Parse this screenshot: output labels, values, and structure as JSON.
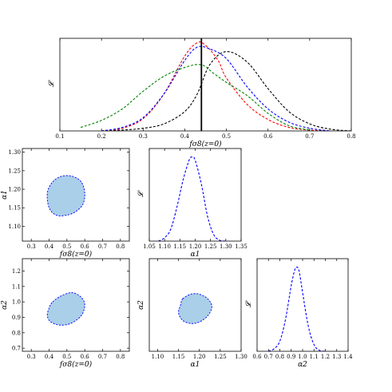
{
  "chart_data": [
    {
      "type": "line",
      "id": "fs8-likelihood",
      "xlabel": "fσ8(z=0)",
      "ylabel": "𝓛",
      "xlim": [
        0.1,
        0.8
      ],
      "ylim": [
        0,
        1.05
      ],
      "x_ticks": [
        "0.1",
        "0.2",
        "0.3",
        "0.4",
        "0.5",
        "0.6",
        "0.7",
        "0.8"
      ],
      "show_y_ticks": false,
      "vline_x": 0.44,
      "series": [
        {
          "color": "#000000",
          "dash": "dashed",
          "x": [
            0.2,
            0.25,
            0.3,
            0.35,
            0.4,
            0.43,
            0.46,
            0.5,
            0.55,
            0.6,
            0.65,
            0.7,
            0.75,
            0.8
          ],
          "y": [
            0.0,
            0.01,
            0.03,
            0.08,
            0.22,
            0.42,
            0.75,
            0.9,
            0.78,
            0.48,
            0.22,
            0.08,
            0.02,
            0.0
          ]
        },
        {
          "color": "#ff0000",
          "dash": "dashed",
          "x": [
            0.2,
            0.25,
            0.3,
            0.35,
            0.4,
            0.43,
            0.45,
            0.48,
            0.5,
            0.55,
            0.6,
            0.65,
            0.7,
            0.75
          ],
          "y": [
            0.0,
            0.03,
            0.14,
            0.42,
            0.85,
            1.0,
            0.97,
            0.8,
            0.6,
            0.3,
            0.13,
            0.04,
            0.01,
            0.0
          ]
        },
        {
          "color": "#0000ff",
          "dash": "dashed",
          "x": [
            0.2,
            0.25,
            0.3,
            0.35,
            0.4,
            0.43,
            0.46,
            0.5,
            0.55,
            0.6,
            0.65,
            0.7,
            0.75
          ],
          "y": [
            0.0,
            0.04,
            0.15,
            0.42,
            0.8,
            0.95,
            0.93,
            0.82,
            0.5,
            0.25,
            0.1,
            0.03,
            0.0
          ]
        },
        {
          "color": "#008000",
          "dash": "dashed",
          "x": [
            0.15,
            0.2,
            0.25,
            0.3,
            0.35,
            0.4,
            0.44,
            0.47,
            0.5,
            0.55,
            0.6,
            0.65,
            0.7
          ],
          "y": [
            0.04,
            0.12,
            0.25,
            0.45,
            0.62,
            0.72,
            0.75,
            0.65,
            0.55,
            0.4,
            0.2,
            0.06,
            0.01
          ]
        }
      ]
    },
    {
      "type": "contour",
      "id": "a1-vs-fs8",
      "xlabel": "fσ8(z=0)",
      "ylabel": "α1",
      "xlim": [
        0.25,
        0.85
      ],
      "ylim": [
        1.06,
        1.31
      ],
      "x_ticks": [
        "0.3",
        "0.4",
        "0.5",
        "0.6",
        "0.7",
        "0.8"
      ],
      "y_ticks": [
        "1.10",
        "1.15",
        "1.20",
        "1.25",
        "1.30"
      ],
      "fill": "#aacfe8",
      "edge": "#0000ff",
      "contour": {
        "x": [
          0.42,
          0.47,
          0.53,
          0.58,
          0.6,
          0.59,
          0.55,
          0.5,
          0.44,
          0.4,
          0.39
        ],
        "y": [
          1.22,
          1.235,
          1.235,
          1.22,
          1.19,
          1.16,
          1.14,
          1.13,
          1.13,
          1.15,
          1.19
        ]
      }
    },
    {
      "type": "line",
      "id": "a1-likelihood",
      "xlabel": "α1",
      "ylabel": "𝓛",
      "xlim": [
        1.05,
        1.35
      ],
      "ylim": [
        0,
        1.1
      ],
      "x_ticks": [
        "1.05",
        "1.10",
        "1.15",
        "1.20",
        "1.25",
        "1.30",
        "1.35"
      ],
      "show_y_ticks": false,
      "series": [
        {
          "color": "#0000ff",
          "dash": "dashed",
          "x": [
            1.08,
            1.1,
            1.12,
            1.14,
            1.16,
            1.18,
            1.19,
            1.2,
            1.22,
            1.24,
            1.26,
            1.28,
            1.3
          ],
          "y": [
            0.0,
            0.04,
            0.14,
            0.4,
            0.72,
            0.96,
            1.0,
            0.96,
            0.68,
            0.3,
            0.08,
            0.01,
            0.0
          ]
        }
      ]
    },
    {
      "type": "contour",
      "id": "a2-vs-fs8",
      "xlabel": "fσ8(z=0)",
      "ylabel": "α2",
      "xlim": [
        0.25,
        0.85
      ],
      "ylim": [
        0.68,
        1.28
      ],
      "x_ticks": [
        "0.3",
        "0.4",
        "0.5",
        "0.6",
        "0.7",
        "0.8"
      ],
      "y_ticks": [
        "0.7",
        "0.8",
        "0.9",
        "1.0",
        "1.1",
        "1.2"
      ],
      "fill": "#aacfe8",
      "edge": "#0000ff",
      "contour": {
        "x": [
          0.42,
          0.47,
          0.53,
          0.58,
          0.6,
          0.58,
          0.52,
          0.46,
          0.41,
          0.39,
          0.4
        ],
        "y": [
          1.0,
          1.04,
          1.06,
          1.03,
          0.98,
          0.91,
          0.86,
          0.85,
          0.87,
          0.91,
          0.96
        ]
      }
    },
    {
      "type": "contour",
      "id": "a2-vs-a1",
      "xlabel": "α1",
      "ylabel": "α2",
      "xlim": [
        1.08,
        1.3
      ],
      "ylim": [
        0.68,
        1.28
      ],
      "x_ticks": [
        "1.10",
        "1.15",
        "1.20",
        "1.25",
        "1.30"
      ],
      "y_ticks": [],
      "fill": "#aacfe8",
      "edge": "#0000ff",
      "contour": {
        "x": [
          1.16,
          1.18,
          1.2,
          1.22,
          1.23,
          1.22,
          1.2,
          1.18,
          1.16,
          1.15,
          1.155
        ],
        "y": [
          1.02,
          1.05,
          1.05,
          1.02,
          0.97,
          0.91,
          0.87,
          0.86,
          0.88,
          0.93,
          0.98
        ]
      }
    },
    {
      "type": "line",
      "id": "a2-likelihood",
      "xlabel": "α2",
      "ylabel": "𝓛",
      "xlim": [
        0.6,
        1.4
      ],
      "ylim": [
        0,
        1.1
      ],
      "x_ticks": [
        "0.6",
        "0.7",
        "0.8",
        "0.9",
        "1.0",
        "1.1",
        "1.2",
        "1.3",
        "1.4"
      ],
      "show_y_ticks": false,
      "series": [
        {
          "color": "#0000ff",
          "dash": "dashed",
          "x": [
            0.7,
            0.75,
            0.8,
            0.85,
            0.9,
            0.93,
            0.95,
            0.97,
            1.0,
            1.05,
            1.1,
            1.15,
            1.2
          ],
          "y": [
            0.0,
            0.03,
            0.12,
            0.38,
            0.78,
            0.96,
            1.0,
            0.95,
            0.7,
            0.3,
            0.08,
            0.01,
            0.0
          ]
        }
      ]
    }
  ]
}
